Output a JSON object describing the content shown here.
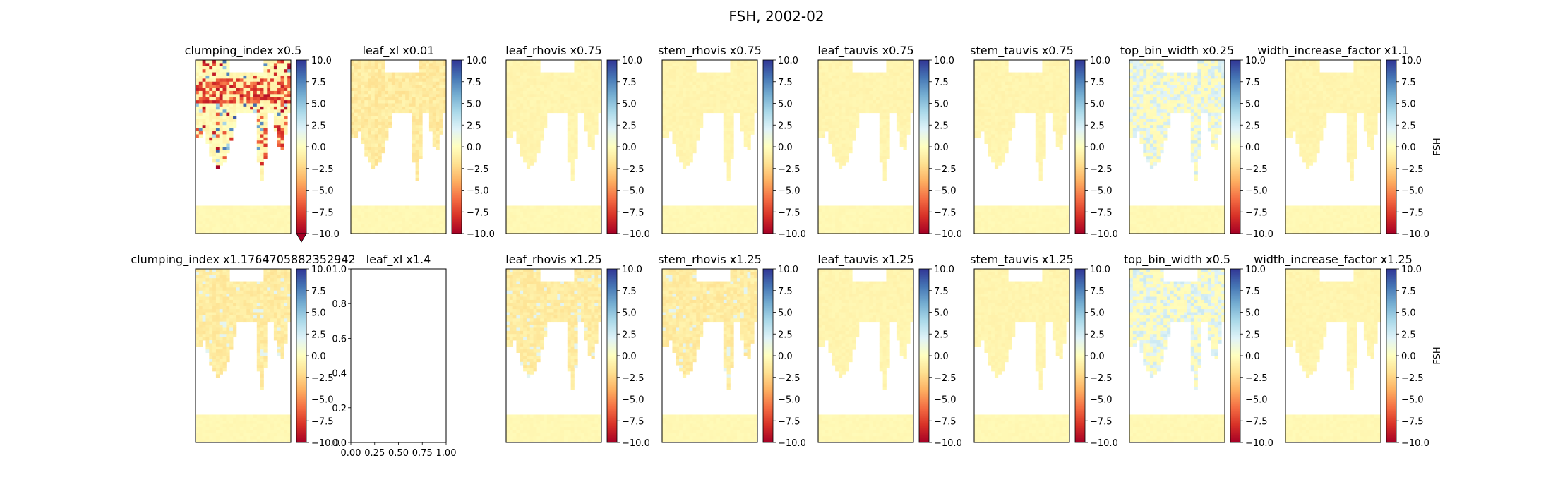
{
  "figure": {
    "title": "FSH, 2002-02",
    "colorbar_label": "FSH",
    "colormap": "RdYlBu",
    "colors": {
      "land_fill": "#fefcc4",
      "extend_marker": "#a50026"
    }
  },
  "chart_data": {
    "type": "heatmap",
    "title": "FSH, 2002-02",
    "colorbar": {
      "label": "FSH",
      "range": [
        -10,
        10
      ],
      "ticks": [
        "10.0",
        "7.5",
        "5.0",
        "2.5",
        "0.0",
        "−2.5",
        "−5.0",
        "−7.5",
        "−10.0"
      ],
      "ticks_minus_hyphen": [
        "10.0",
        "7.5",
        "5.0",
        "2.5",
        "0.0",
        "-2.5",
        "-5.0",
        "-7.5",
        "-10.0"
      ]
    },
    "panels": [
      {
        "title": "clumping_index x0.5",
        "kind": "map",
        "style": "strong",
        "colorbar_extend_min": true
      },
      {
        "title": "leaf_xl x0.01",
        "kind": "map",
        "style": "weak-warm"
      },
      {
        "title": "leaf_rhovis x0.75",
        "kind": "map",
        "style": "faint"
      },
      {
        "title": "stem_rhovis x0.75",
        "kind": "map",
        "style": "faint"
      },
      {
        "title": "leaf_tauvis x0.75",
        "kind": "map",
        "style": "faint"
      },
      {
        "title": "stem_tauvis x0.75",
        "kind": "map",
        "style": "faint"
      },
      {
        "title": "top_bin_width x0.25",
        "kind": "map",
        "style": "cool"
      },
      {
        "title": "width_increase_factor x1.1",
        "kind": "map",
        "style": "faint",
        "show_label": true
      },
      {
        "title": "clumping_index x1.1764705882352942",
        "kind": "map",
        "style": "mild"
      },
      {
        "title": "leaf_xl x1.4",
        "kind": "empty",
        "xticks": [
          "0.00",
          "0.25",
          "0.50",
          "0.75",
          "1.00"
        ],
        "yticks": [
          "0.0",
          "0.2",
          "0.4",
          "0.6",
          "0.8",
          "1.0"
        ],
        "xlim": [
          0,
          1
        ],
        "ylim": [
          0,
          1
        ]
      },
      {
        "title": "leaf_rhovis x1.25",
        "kind": "map",
        "style": "mild"
      },
      {
        "title": "stem_rhovis x1.25",
        "kind": "map",
        "style": "mild"
      },
      {
        "title": "leaf_tauvis x1.25",
        "kind": "map",
        "style": "faint"
      },
      {
        "title": "stem_tauvis x1.25",
        "kind": "map",
        "style": "faint"
      },
      {
        "title": "top_bin_width x0.5",
        "kind": "map",
        "style": "cool"
      },
      {
        "title": "width_increase_factor x1.25",
        "kind": "map",
        "style": "faint",
        "show_label": true
      }
    ]
  }
}
